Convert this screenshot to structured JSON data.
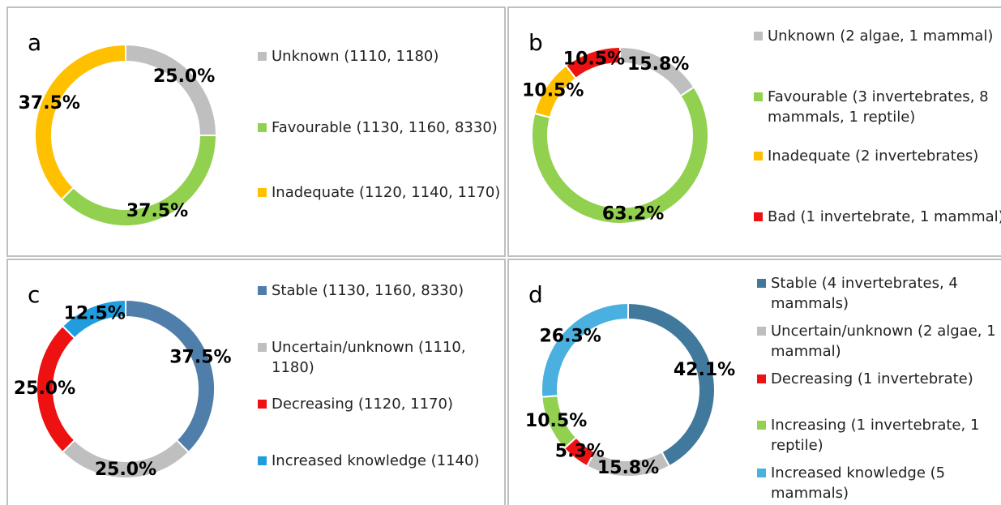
{
  "chart_data": [
    {
      "type": "pie",
      "title": "a",
      "categories": [
        "Unknown (1110, 1180)",
        "Favourable (1130, 1160, 8330)",
        "Inadequate (1120, 1140, 1170)"
      ],
      "values": [
        25.0,
        37.5,
        37.5
      ],
      "value_labels": [
        "25.0%",
        "37.5%",
        "37.5%"
      ],
      "colors": [
        "#bfbfbf",
        "#92d050",
        "#ffc000"
      ]
    },
    {
      "type": "pie",
      "title": "b",
      "categories": [
        "Unknown (2 algae, 1 mammal)",
        "Favourable (3 invertebrates, 8 mammals, 1 reptile)",
        "Inadequate (2 invertebrates)",
        "Bad (1 invertebrate, 1 mammal)"
      ],
      "values": [
        15.8,
        63.2,
        10.5,
        10.5
      ],
      "value_labels": [
        "15.8%",
        "63.2%",
        "10.5%",
        "10.5%"
      ],
      "colors": [
        "#bfbfbf",
        "#92d050",
        "#ffc000",
        "#ee1111"
      ]
    },
    {
      "type": "pie",
      "title": "c",
      "categories": [
        "Stable (1130, 1160, 8330)",
        "Uncertain/unknown (1110, 1180)",
        "Decreasing (1120, 1170)",
        "Increased knowledge (1140)"
      ],
      "values": [
        37.5,
        25.0,
        25.0,
        12.5
      ],
      "value_labels": [
        "37.5%",
        "25.0%",
        "25.0%",
        "12.5%"
      ],
      "colors": [
        "#4f7eab",
        "#bfbfbf",
        "#ee1111",
        "#1f9ddf"
      ]
    },
    {
      "type": "pie",
      "title": "d",
      "categories": [
        "Stable (4 invertebrates, 4 mammals)",
        "Uncertain/unknown  (2 algae, 1 mammal)",
        "Decreasing (1 invertebrate)",
        "Increasing (1 invertebrate, 1 reptile)",
        "Increased knowledge (5 mammals)"
      ],
      "values": [
        42.1,
        15.8,
        5.3,
        10.5,
        26.3
      ],
      "value_labels": [
        "42.1%",
        "15.8%",
        "5.3%",
        "10.5%",
        "26.3%"
      ],
      "colors": [
        "#41799c",
        "#bfbfbf",
        "#ee1111",
        "#92d050",
        "#4ab0e0"
      ]
    }
  ]
}
